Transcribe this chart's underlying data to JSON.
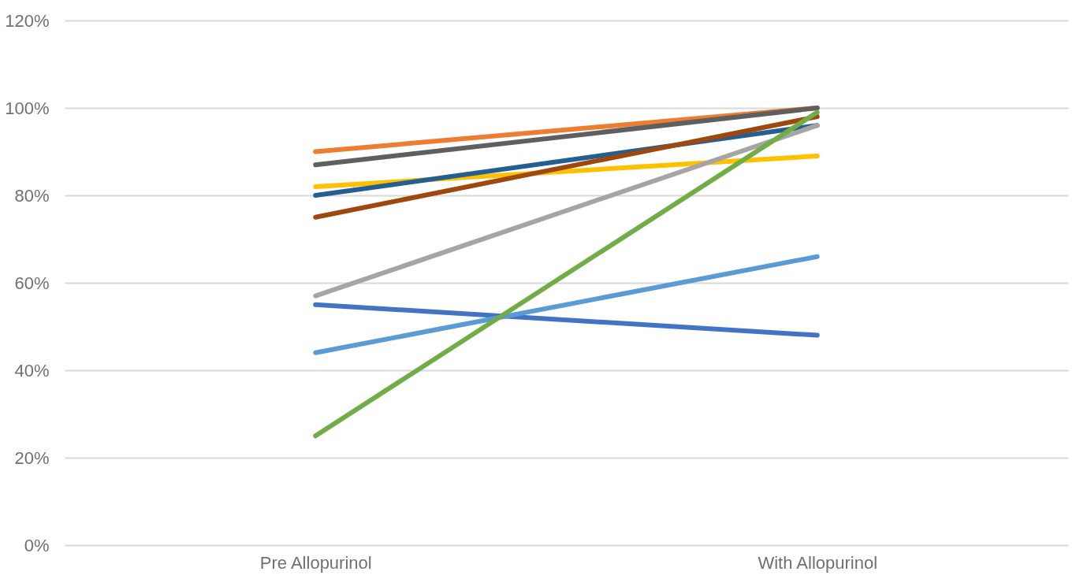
{
  "chart_data": {
    "type": "line",
    "categories": [
      "Pre Allopurinol",
      "With Allopurinol"
    ],
    "series": [
      {
        "color": "#ed7d31",
        "values": [
          90,
          100
        ]
      },
      {
        "color": "#5f5f5f",
        "values": [
          87,
          100
        ]
      },
      {
        "color": "#ffc000",
        "values": [
          82,
          89
        ]
      },
      {
        "color": "#255e91",
        "values": [
          80,
          96
        ]
      },
      {
        "color": "#9e480e",
        "values": [
          75,
          98
        ]
      },
      {
        "color": "#a5a5a5",
        "values": [
          57,
          96
        ]
      },
      {
        "color": "#4472c4",
        "values": [
          55,
          48
        ]
      },
      {
        "color": "#5b9bd5",
        "values": [
          44,
          66
        ]
      },
      {
        "color": "#70ad47",
        "values": [
          25,
          99
        ]
      }
    ],
    "ylim": [
      0,
      120
    ],
    "yticks": [
      {
        "value": 0,
        "label": "0%"
      },
      {
        "value": 20,
        "label": "20%"
      },
      {
        "value": 40,
        "label": "40%"
      },
      {
        "value": 60,
        "label": "60%"
      },
      {
        "value": 80,
        "label": "80%"
      },
      {
        "value": 100,
        "label": "100%"
      },
      {
        "value": 120,
        "label": "120%"
      }
    ],
    "grid": "y",
    "legend": false,
    "marker": "none",
    "line_style": "solid"
  }
}
